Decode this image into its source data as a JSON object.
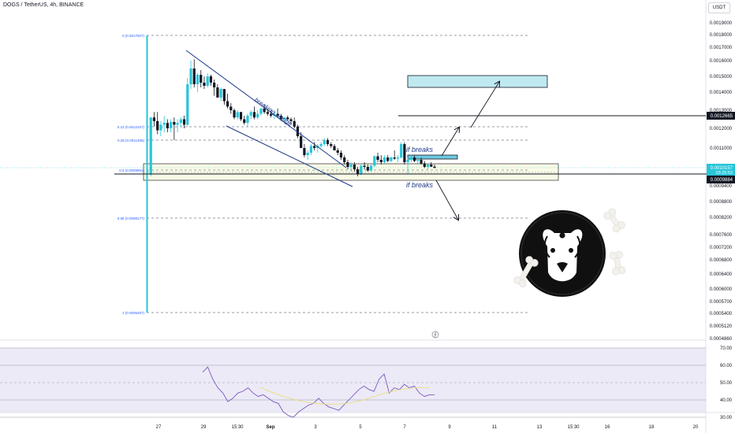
{
  "header": {
    "title": "DOGS / TetherUS, 4h, BINANCE",
    "unit": "USDT"
  },
  "chart_data": {
    "type": "candlestick",
    "price_axis": {
      "ticks": [
        "0.0019000",
        "0.0018000",
        "0.0017000",
        "0.0016000",
        "0.0015000",
        "0.0014000",
        "0.0013000",
        "0.0012000",
        "0.0011000",
        "0.0009400",
        "0.0008800",
        "0.0008200",
        "0.0007600",
        "0.0007200",
        "0.0006800",
        "0.0006400",
        "0.0006000",
        "0.0005700",
        "0.0005400",
        "0.0005120",
        "0.0004860"
      ],
      "price_labels": [
        {
          "text": "0.0012665",
          "style": "dark"
        },
        {
          "text": "0.0010157",
          "style": "blue"
        },
        {
          "text": "03:25:53",
          "style": "blue-sub"
        },
        {
          "text": "0.0009884",
          "style": "dark"
        }
      ]
    },
    "time_axis": {
      "ticks": [
        "27",
        "29",
        "15:30",
        "Sep",
        "3",
        "5",
        "7",
        "9",
        "11",
        "13",
        "15:30",
        "16",
        "18",
        "20"
      ]
    },
    "fib_levels": [
      {
        "label": "0 (0.0017927)"
      },
      {
        "label": "0.23 (0.0012107)"
      },
      {
        "label": "0.28 (0.0011408)"
      },
      {
        "label": "0.5 (0.0009891)"
      },
      {
        "label": "0.66 (0.0008177)"
      },
      {
        "label": "1 (0.0005457)"
      }
    ],
    "annotations": [
      "breaking wedge",
      "if breaks",
      "if breaks"
    ],
    "rsi": {
      "ticks": [
        "70.00",
        "60.00",
        "50.00",
        "40.00",
        "30.00"
      ],
      "values": [
        56,
        59,
        52,
        47,
        44,
        39,
        41,
        44,
        45,
        47,
        44,
        42,
        43,
        41,
        39,
        38,
        33,
        31,
        30,
        33,
        35,
        37,
        38,
        41,
        38,
        36,
        35,
        34,
        37,
        40,
        43,
        46,
        48,
        46,
        45,
        52,
        55,
        44,
        47,
        46,
        49,
        47,
        48,
        44,
        42,
        43,
        43
      ]
    },
    "candles": [
      [
        1.0,
        1.0,
        0.99,
        1.0
      ],
      [
        0.988,
        1.26,
        0.98,
        1.26
      ],
      [
        1.26,
        1.29,
        1.21,
        1.24
      ],
      [
        1.24,
        1.29,
        1.17,
        1.19
      ],
      [
        1.19,
        1.24,
        1.16,
        1.22
      ],
      [
        1.22,
        1.27,
        1.18,
        1.23
      ],
      [
        1.23,
        1.25,
        1.18,
        1.2
      ],
      [
        1.2,
        1.25,
        1.18,
        1.235
      ],
      [
        1.235,
        1.26,
        1.14,
        1.22
      ],
      [
        1.22,
        1.25,
        1.18,
        1.23
      ],
      [
        1.23,
        1.26,
        1.21,
        1.25
      ],
      [
        1.25,
        1.27,
        1.2,
        1.22
      ],
      [
        1.22,
        1.49,
        1.21,
        1.45
      ],
      [
        1.45,
        1.6,
        1.42,
        1.55
      ],
      [
        1.55,
        1.61,
        1.43,
        1.45
      ],
      [
        1.45,
        1.52,
        1.4,
        1.51
      ],
      [
        1.51,
        1.54,
        1.43,
        1.46
      ],
      [
        1.46,
        1.5,
        1.42,
        1.44
      ],
      [
        1.44,
        1.52,
        1.43,
        1.5
      ],
      [
        1.5,
        1.51,
        1.44,
        1.46
      ],
      [
        1.46,
        1.48,
        1.38,
        1.43
      ],
      [
        1.43,
        1.45,
        1.37,
        1.37
      ],
      [
        1.37,
        1.43,
        1.35,
        1.42
      ],
      [
        1.42,
        1.42,
        1.33,
        1.35
      ],
      [
        1.35,
        1.39,
        1.31,
        1.32
      ],
      [
        1.32,
        1.34,
        1.28,
        1.3
      ],
      [
        1.3,
        1.31,
        1.25,
        1.26
      ],
      [
        1.26,
        1.3,
        1.25,
        1.29
      ],
      [
        1.29,
        1.29,
        1.24,
        1.25
      ],
      [
        1.25,
        1.27,
        1.22,
        1.23
      ],
      [
        1.23,
        1.28,
        1.21,
        1.27
      ],
      [
        1.27,
        1.3,
        1.25,
        1.29
      ],
      [
        1.29,
        1.32,
        1.25,
        1.26
      ],
      [
        1.26,
        1.3,
        1.25,
        1.28
      ],
      [
        1.28,
        1.31,
        1.27,
        1.31
      ],
      [
        1.31,
        1.33,
        1.28,
        1.29
      ],
      [
        1.29,
        1.31,
        1.27,
        1.28
      ],
      [
        1.28,
        1.3,
        1.26,
        1.27
      ],
      [
        1.27,
        1.29,
        1.25,
        1.28
      ],
      [
        1.28,
        1.31,
        1.26,
        1.27
      ],
      [
        1.27,
        1.28,
        1.24,
        1.25
      ],
      [
        1.25,
        1.26,
        1.23,
        1.26
      ],
      [
        1.26,
        1.27,
        1.24,
        1.25
      ],
      [
        1.25,
        1.26,
        1.22,
        1.24
      ],
      [
        1.24,
        1.26,
        1.2,
        1.21
      ],
      [
        1.21,
        1.22,
        1.15,
        1.16
      ],
      [
        1.16,
        1.18,
        1.1,
        1.1
      ],
      [
        1.1,
        1.12,
        1.06,
        1.07
      ],
      [
        1.07,
        1.09,
        1.05,
        1.08
      ],
      [
        1.08,
        1.12,
        1.07,
        1.11
      ],
      [
        1.11,
        1.13,
        1.09,
        1.1
      ],
      [
        1.1,
        1.12,
        1.08,
        1.11
      ],
      [
        1.11,
        1.13,
        1.1,
        1.12
      ],
      [
        1.12,
        1.15,
        1.11,
        1.14
      ],
      [
        1.14,
        1.15,
        1.11,
        1.12
      ],
      [
        1.12,
        1.13,
        1.1,
        1.11
      ],
      [
        1.11,
        1.12,
        1.09,
        1.09
      ],
      [
        1.09,
        1.1,
        1.07,
        1.08
      ],
      [
        1.08,
        1.09,
        1.05,
        1.06
      ],
      [
        1.06,
        1.07,
        1.03,
        1.04
      ],
      [
        1.04,
        1.05,
        1.01,
        1.02
      ],
      [
        1.02,
        1.04,
        1.0,
        1.03
      ],
      [
        1.03,
        1.04,
        1.0,
        1.01
      ],
      [
        1.01,
        1.02,
        0.98,
        0.99
      ],
      [
        0.99,
        1.03,
        0.985,
        1.025
      ],
      [
        1.025,
        1.04,
        1.01,
        1.02
      ],
      [
        1.02,
        1.03,
        1.0,
        1.005
      ],
      [
        1.005,
        1.03,
        1.0,
        1.025
      ],
      [
        1.025,
        1.07,
        1.02,
        1.065
      ],
      [
        1.065,
        1.08,
        1.04,
        1.05
      ],
      [
        1.05,
        1.07,
        1.03,
        1.04
      ],
      [
        1.04,
        1.07,
        1.035,
        1.06
      ],
      [
        1.06,
        1.07,
        1.04,
        1.045
      ],
      [
        1.045,
        1.065,
        1.04,
        1.06
      ],
      [
        1.06,
        1.09,
        1.05,
        1.055
      ],
      [
        1.055,
        1.07,
        1.04,
        1.06
      ],
      [
        1.06,
        1.13,
        1.055,
        1.12
      ],
      [
        1.12,
        1.13,
        1.03,
        1.04
      ],
      [
        1.04,
        1.06,
        0.99,
        1.05
      ],
      [
        1.05,
        1.07,
        1.04,
        1.06
      ],
      [
        1.06,
        1.07,
        1.04,
        1.045
      ],
      [
        1.045,
        1.06,
        1.03,
        1.05
      ],
      [
        1.05,
        1.06,
        1.03,
        1.035
      ],
      [
        1.035,
        1.045,
        1.015,
        1.02
      ],
      [
        1.02,
        1.035,
        1.01,
        1.03
      ],
      [
        1.03,
        1.04,
        1.02,
        1.021
      ],
      [
        1.021,
        1.03,
        1.015,
        1.0157
      ]
    ]
  }
}
